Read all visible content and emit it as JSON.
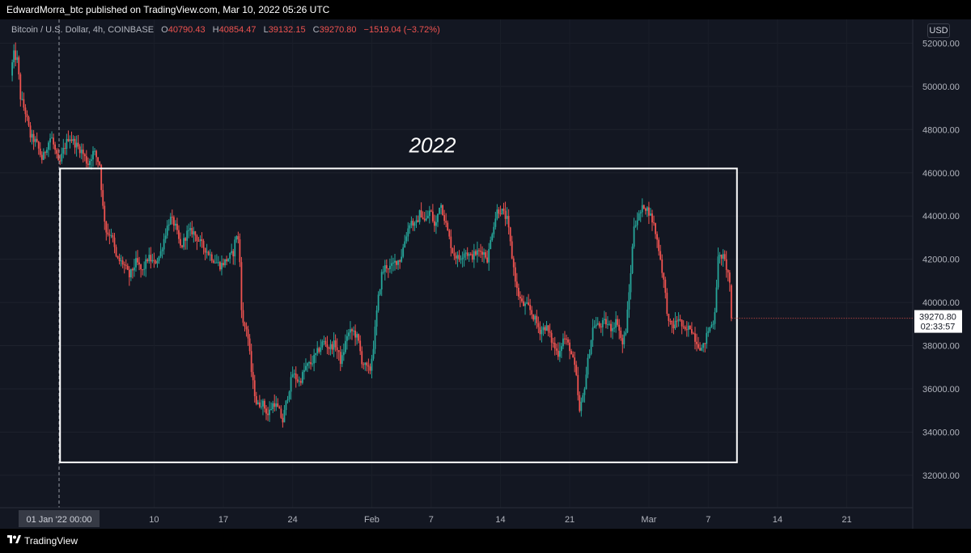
{
  "header": {
    "published_line": "EdwardMorra_btc published on TradingView.com, Mar 10, 2022 05:26 UTC"
  },
  "legend": {
    "symbol": "Bitcoin / U.S. Dollar, 4h, COINBASE",
    "o_label": "O",
    "o_value": "40790.43",
    "h_label": "H",
    "h_value": "40854.47",
    "l_label": "L",
    "l_value": "39132.15",
    "c_label": "C",
    "c_value": "39270.80",
    "change": "−1519.04 (−3.72%)"
  },
  "currency": "USD",
  "footer": {
    "brand": "TradingView",
    "logo_icon": "tradingview-logo-icon"
  },
  "colors": {
    "background": "#131722",
    "up": "#26a69a",
    "down": "#ef5350",
    "annotation": "#ffffff"
  },
  "chart_data": {
    "type": "candlestick",
    "title": "Bitcoin / U.S. Dollar, 4h, COINBASE",
    "interval": "4h",
    "ylim": [
      30500,
      53100
    ],
    "y_ticks": [
      32000,
      34000,
      36000,
      38000,
      40000,
      42000,
      44000,
      46000,
      48000,
      50000,
      52000
    ],
    "y_tick_labels": [
      "32000.00",
      "34000.00",
      "36000.00",
      "38000.00",
      "40000.00",
      "42000.00",
      "44000.00",
      "46000.00",
      "48000.00",
      "50000.00",
      "52000.00"
    ],
    "x_tick_labels": [
      {
        "day": 9.6,
        "label": "10"
      },
      {
        "day": 16.6,
        "label": "17"
      },
      {
        "day": 23.6,
        "label": "24"
      },
      {
        "day": 31.6,
        "label": "Feb"
      },
      {
        "day": 37.6,
        "label": "7"
      },
      {
        "day": 44.6,
        "label": "14"
      },
      {
        "day": 51.6,
        "label": "21"
      },
      {
        "day": 59.6,
        "label": "Mar"
      },
      {
        "day": 65.6,
        "label": "7"
      },
      {
        "day": 72.6,
        "label": "14"
      },
      {
        "day": 79.6,
        "label": "21"
      }
    ],
    "crosshair": {
      "day": 0,
      "label": "01 Jan '22   00:00"
    },
    "last_price": {
      "value": 39270.8,
      "label": "39270.80",
      "countdown": "02:33:57"
    },
    "annotation": {
      "text": "2022",
      "box": {
        "day_start": 0.1,
        "day_end": 68.5,
        "price_top": 46200,
        "price_bottom": 32600
      }
    },
    "keypoints": [
      {
        "day": -4.9,
        "close": 50500
      },
      {
        "day": -4.6,
        "close": 51500
      },
      {
        "day": -4.2,
        "close": 51200
      },
      {
        "day": -3.9,
        "close": 49500
      },
      {
        "day": -3.4,
        "close": 48800
      },
      {
        "day": -2.9,
        "close": 47700
      },
      {
        "day": -2.3,
        "close": 47400
      },
      {
        "day": -1.7,
        "close": 46600
      },
      {
        "day": -1.2,
        "close": 47300
      },
      {
        "day": -0.8,
        "close": 47700
      },
      {
        "day": -0.4,
        "close": 47000
      },
      {
        "day": 0.0,
        "close": 46300
      },
      {
        "day": 0.4,
        "close": 47000
      },
      {
        "day": 1.0,
        "close": 47700
      },
      {
        "day": 1.7,
        "close": 47300
      },
      {
        "day": 2.3,
        "close": 47000
      },
      {
        "day": 2.9,
        "close": 46400
      },
      {
        "day": 3.5,
        "close": 47000
      },
      {
        "day": 4.1,
        "close": 46400
      },
      {
        "day": 4.4,
        "close": 44500
      },
      {
        "day": 4.8,
        "close": 43200
      },
      {
        "day": 5.3,
        "close": 43200
      },
      {
        "day": 5.8,
        "close": 42000
      },
      {
        "day": 6.5,
        "close": 41800
      },
      {
        "day": 7.1,
        "close": 41200
      },
      {
        "day": 7.8,
        "close": 41900
      },
      {
        "day": 8.4,
        "close": 41400
      },
      {
        "day": 9.0,
        "close": 42100
      },
      {
        "day": 9.6,
        "close": 41800
      },
      {
        "day": 10.2,
        "close": 42200
      },
      {
        "day": 10.8,
        "close": 43300
      },
      {
        "day": 11.2,
        "close": 43900
      },
      {
        "day": 11.7,
        "close": 43600
      },
      {
        "day": 12.3,
        "close": 42500
      },
      {
        "day": 12.9,
        "close": 43200
      },
      {
        "day": 13.5,
        "close": 43300
      },
      {
        "day": 14.2,
        "close": 42800
      },
      {
        "day": 14.9,
        "close": 42400
      },
      {
        "day": 15.6,
        "close": 42000
      },
      {
        "day": 16.3,
        "close": 41700
      },
      {
        "day": 17.0,
        "close": 42000
      },
      {
        "day": 17.6,
        "close": 42300
      },
      {
        "day": 17.9,
        "close": 43200
      },
      {
        "day": 18.2,
        "close": 42700
      },
      {
        "day": 18.5,
        "close": 39000
      },
      {
        "day": 19.0,
        "close": 38800
      },
      {
        "day": 19.5,
        "close": 36500
      },
      {
        "day": 20.0,
        "close": 35200
      },
      {
        "day": 20.5,
        "close": 35400
      },
      {
        "day": 21.1,
        "close": 34800
      },
      {
        "day": 21.7,
        "close": 35400
      },
      {
        "day": 22.2,
        "close": 35000
      },
      {
        "day": 22.6,
        "close": 34500
      },
      {
        "day": 23.0,
        "close": 35500
      },
      {
        "day": 23.6,
        "close": 36700
      },
      {
        "day": 24.3,
        "close": 36300
      },
      {
        "day": 24.9,
        "close": 37000
      },
      {
        "day": 25.5,
        "close": 37200
      },
      {
        "day": 26.1,
        "close": 37700
      },
      {
        "day": 26.7,
        "close": 38200
      },
      {
        "day": 27.3,
        "close": 37900
      },
      {
        "day": 27.9,
        "close": 38100
      },
      {
        "day": 28.5,
        "close": 37200
      },
      {
        "day": 29.1,
        "close": 38500
      },
      {
        "day": 29.7,
        "close": 38700
      },
      {
        "day": 30.2,
        "close": 38300
      },
      {
        "day": 30.6,
        "close": 37300
      },
      {
        "day": 31.0,
        "close": 37000
      },
      {
        "day": 31.4,
        "close": 36800
      },
      {
        "day": 31.8,
        "close": 38100
      },
      {
        "day": 32.2,
        "close": 40000
      },
      {
        "day": 32.6,
        "close": 41300
      },
      {
        "day": 33.0,
        "close": 41700
      },
      {
        "day": 33.5,
        "close": 41600
      },
      {
        "day": 34.0,
        "close": 41900
      },
      {
        "day": 34.5,
        "close": 42000
      },
      {
        "day": 35.0,
        "close": 43000
      },
      {
        "day": 35.5,
        "close": 43800
      },
      {
        "day": 36.0,
        "close": 43500
      },
      {
        "day": 36.5,
        "close": 44200
      },
      {
        "day": 37.0,
        "close": 43700
      },
      {
        "day": 37.5,
        "close": 44300
      },
      {
        "day": 38.0,
        "close": 43400
      },
      {
        "day": 38.5,
        "close": 44700
      },
      {
        "day": 38.9,
        "close": 44000
      },
      {
        "day": 39.3,
        "close": 43200
      },
      {
        "day": 39.8,
        "close": 42300
      },
      {
        "day": 40.4,
        "close": 42000
      },
      {
        "day": 41.0,
        "close": 42400
      },
      {
        "day": 41.6,
        "close": 42100
      },
      {
        "day": 42.2,
        "close": 42300
      },
      {
        "day": 42.8,
        "close": 42400
      },
      {
        "day": 43.3,
        "close": 42000
      },
      {
        "day": 43.8,
        "close": 43400
      },
      {
        "day": 44.3,
        "close": 44300
      },
      {
        "day": 44.8,
        "close": 44200
      },
      {
        "day": 45.3,
        "close": 43800
      },
      {
        "day": 45.8,
        "close": 42000
      },
      {
        "day": 46.3,
        "close": 40500
      },
      {
        "day": 46.8,
        "close": 39900
      },
      {
        "day": 47.4,
        "close": 39800
      },
      {
        "day": 48.0,
        "close": 39300
      },
      {
        "day": 48.6,
        "close": 38700
      },
      {
        "day": 49.2,
        "close": 38900
      },
      {
        "day": 49.8,
        "close": 38200
      },
      {
        "day": 50.4,
        "close": 37600
      },
      {
        "day": 51.0,
        "close": 38400
      },
      {
        "day": 51.6,
        "close": 37900
      },
      {
        "day": 52.2,
        "close": 36800
      },
      {
        "day": 52.6,
        "close": 34900
      },
      {
        "day": 53.0,
        "close": 35800
      },
      {
        "day": 53.5,
        "close": 37500
      },
      {
        "day": 54.0,
        "close": 39000
      },
      {
        "day": 54.6,
        "close": 38900
      },
      {
        "day": 55.2,
        "close": 39100
      },
      {
        "day": 55.8,
        "close": 38800
      },
      {
        "day": 56.4,
        "close": 39200
      },
      {
        "day": 56.9,
        "close": 38000
      },
      {
        "day": 57.3,
        "close": 38800
      },
      {
        "day": 57.7,
        "close": 41000
      },
      {
        "day": 58.1,
        "close": 43600
      },
      {
        "day": 58.6,
        "close": 44000
      },
      {
        "day": 59.1,
        "close": 44500
      },
      {
        "day": 59.6,
        "close": 44200
      },
      {
        "day": 60.1,
        "close": 43600
      },
      {
        "day": 60.6,
        "close": 42500
      },
      {
        "day": 61.1,
        "close": 41000
      },
      {
        "day": 61.6,
        "close": 39000
      },
      {
        "day": 62.1,
        "close": 38900
      },
      {
        "day": 62.6,
        "close": 39300
      },
      {
        "day": 63.2,
        "close": 38600
      },
      {
        "day": 63.8,
        "close": 38900
      },
      {
        "day": 64.4,
        "close": 38200
      },
      {
        "day": 65.0,
        "close": 37800
      },
      {
        "day": 65.6,
        "close": 38700
      },
      {
        "day": 66.2,
        "close": 39200
      },
      {
        "day": 66.6,
        "close": 42000
      },
      {
        "day": 67.0,
        "close": 42200
      },
      {
        "day": 67.4,
        "close": 41700
      },
      {
        "day": 67.8,
        "close": 40900
      },
      {
        "day": 68.0,
        "close": 39270.8
      }
    ]
  }
}
